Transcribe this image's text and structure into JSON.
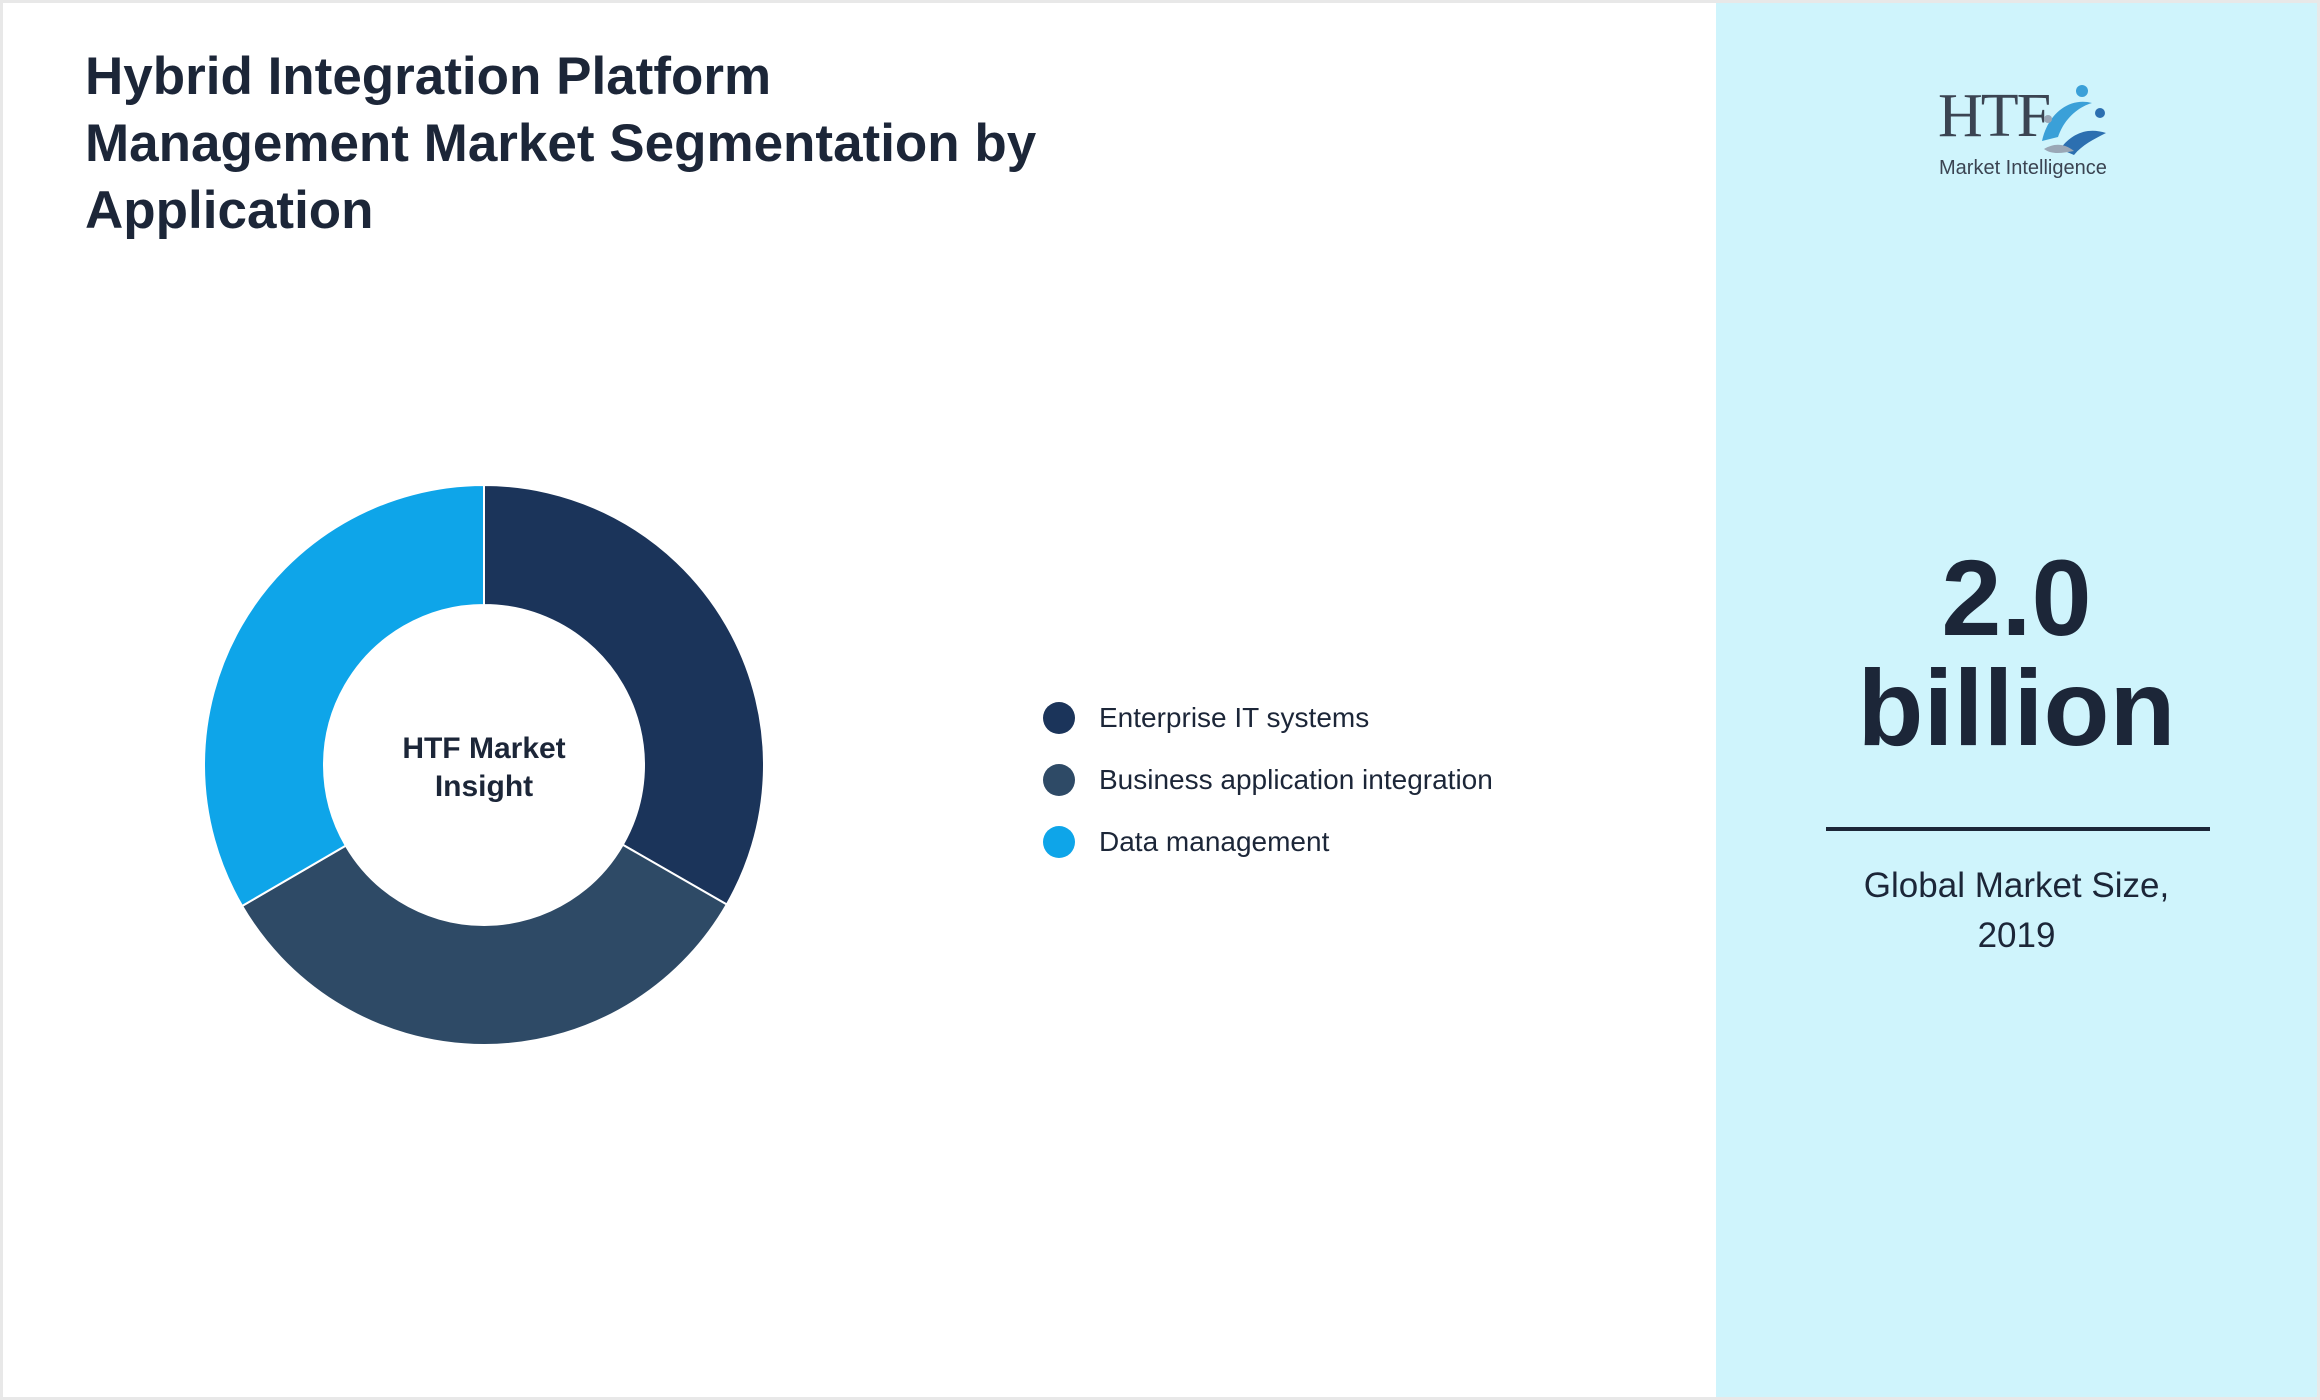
{
  "title": "Hybrid Integration Platform Management Market Segmentation by Application",
  "chart_data": {
    "type": "pie",
    "variant": "donut",
    "center_label": [
      "HTF Market",
      "Insight"
    ],
    "categories": [
      "Enterprise IT systems",
      "Business application integration",
      "Data management"
    ],
    "values": [
      33.3,
      33.3,
      33.4
    ],
    "colors": [
      "#1b345a",
      "#2e4a66",
      "#0ea5e9"
    ],
    "legend": "right"
  },
  "side_panel": {
    "logo": {
      "letters": "HTF",
      "subtitle": "Market Intelligence"
    },
    "value": "2.0",
    "unit": "billion",
    "caption_line1": "Global Market Size,",
    "caption_line2": "2019",
    "background": "#cff4fc"
  },
  "colors": {
    "text": "#1c2638",
    "accent": "#0ea5e9"
  }
}
